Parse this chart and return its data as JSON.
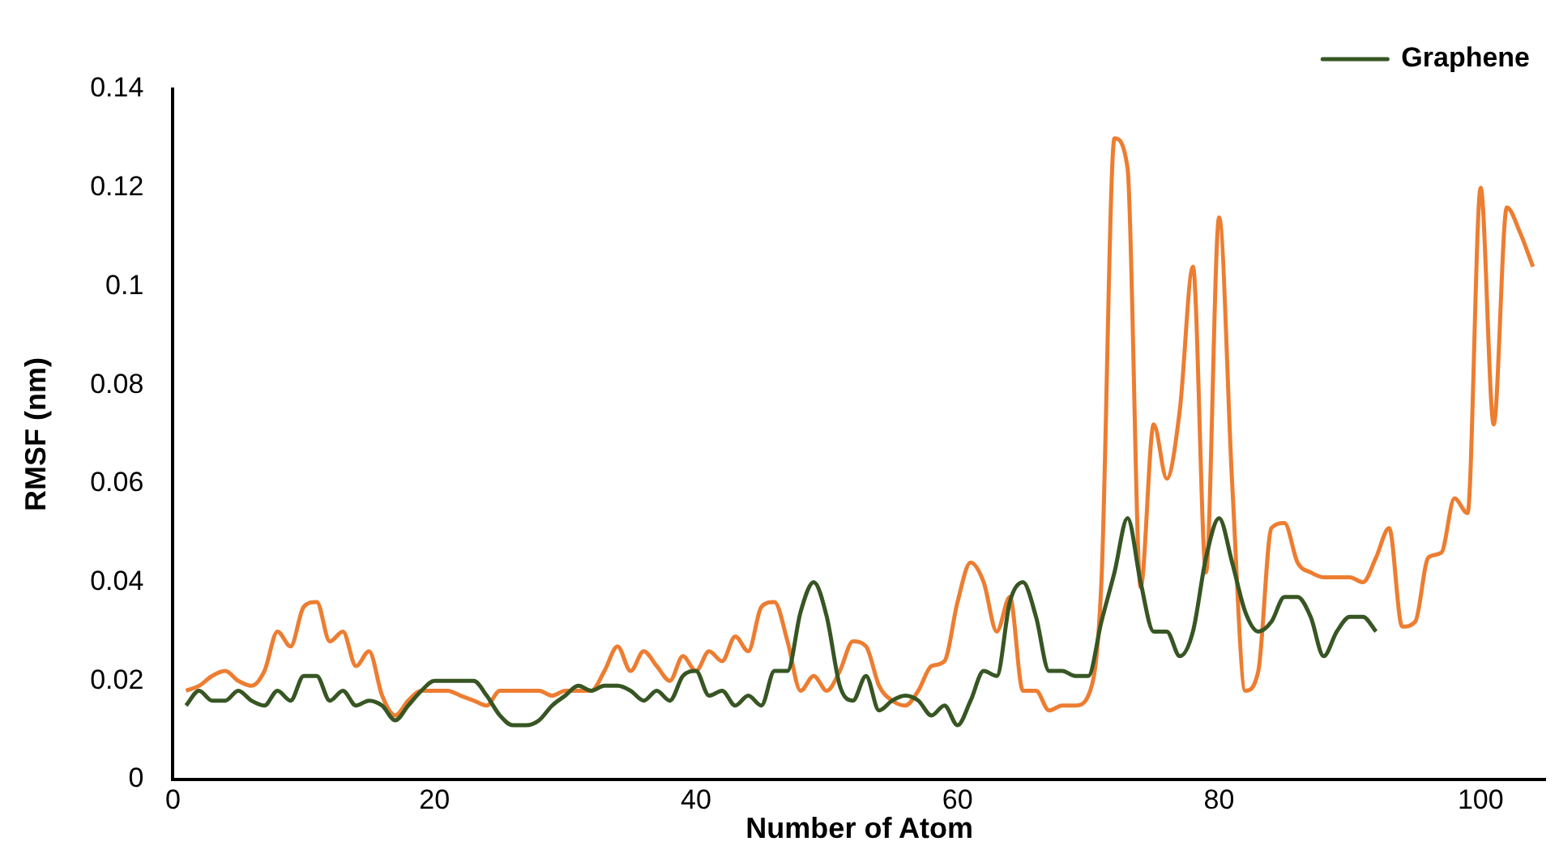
{
  "chart_data": {
    "type": "line",
    "xlabel": "Number of Atom",
    "ylabel": "RMSF (nm)",
    "xlim": [
      0,
      105
    ],
    "xticks": [
      0,
      20,
      40,
      60,
      80,
      100
    ],
    "ylim": [
      0,
      0.14
    ],
    "yticks": [
      0,
      0.02,
      0.04,
      0.06,
      0.08,
      0.1,
      0.12,
      0.14
    ],
    "grid": false,
    "legend": "top right",
    "marker": "none",
    "x": [
      1,
      2,
      3,
      4,
      5,
      6,
      7,
      8,
      9,
      10,
      11,
      12,
      13,
      14,
      15,
      16,
      17,
      18,
      19,
      20,
      21,
      22,
      23,
      24,
      25,
      26,
      27,
      28,
      29,
      30,
      31,
      32,
      33,
      34,
      35,
      36,
      37,
      38,
      39,
      40,
      41,
      42,
      43,
      44,
      45,
      46,
      47,
      48,
      49,
      50,
      51,
      52,
      53,
      54,
      55,
      56,
      57,
      58,
      59,
      60,
      61,
      62,
      63,
      64,
      65,
      66,
      67,
      68,
      69,
      70,
      71,
      72,
      73,
      74,
      75,
      76,
      77,
      78,
      79,
      80,
      81,
      82,
      83,
      84,
      85,
      86,
      87,
      88,
      89,
      90,
      91,
      92,
      93,
      94,
      95,
      96,
      97,
      98,
      99,
      100,
      101,
      102,
      103,
      104
    ],
    "series": [
      {
        "name": "Graphene",
        "color": "#375623",
        "values": [
          0.015,
          0.018,
          0.016,
          0.016,
          0.018,
          0.016,
          0.015,
          0.018,
          0.016,
          0.021,
          0.021,
          0.016,
          0.018,
          0.015,
          0.016,
          0.015,
          0.012,
          0.015,
          0.018,
          0.02,
          0.02,
          0.02,
          0.02,
          0.017,
          0.013,
          0.011,
          0.011,
          0.012,
          0.015,
          0.017,
          0.019,
          0.018,
          0.019,
          0.019,
          0.018,
          0.016,
          0.018,
          0.016,
          0.021,
          0.022,
          0.017,
          0.018,
          0.015,
          0.017,
          0.015,
          0.022,
          0.022,
          0.034,
          0.04,
          0.033,
          0.019,
          0.016,
          0.021,
          0.014,
          0.016,
          0.017,
          0.016,
          0.013,
          0.015,
          0.011,
          0.016,
          0.022,
          0.021,
          0.036,
          0.04,
          0.033,
          0.022,
          0.022,
          0.021,
          0.021,
          0.032,
          0.042,
          0.053,
          0.04,
          0.03,
          0.03,
          0.025,
          0.03,
          0.045,
          0.053,
          0.044,
          0.034,
          0.03,
          0.032,
          0.037,
          0.037,
          0.033,
          0.025,
          0.03,
          0.033,
          0.033,
          0.03,
          null,
          null,
          null,
          null,
          null,
          null,
          null,
          null,
          null,
          null,
          null,
          null
        ]
      },
      {
        "color": "#ed7d31",
        "values": [
          0.018,
          0.019,
          0.021,
          0.022,
          0.02,
          0.019,
          0.022,
          0.03,
          0.027,
          0.035,
          0.036,
          0.028,
          0.03,
          0.023,
          0.026,
          0.017,
          0.013,
          0.016,
          0.018,
          0.018,
          0.018,
          0.017,
          0.016,
          0.015,
          0.018,
          0.018,
          0.018,
          0.018,
          0.017,
          0.018,
          0.018,
          0.018,
          0.022,
          0.027,
          0.022,
          0.026,
          0.023,
          0.02,
          0.025,
          0.022,
          0.026,
          0.024,
          0.029,
          0.026,
          0.035,
          0.036,
          0.028,
          0.018,
          0.021,
          0.018,
          0.022,
          0.028,
          0.027,
          0.019,
          0.016,
          0.015,
          0.018,
          0.023,
          0.024,
          0.036,
          0.044,
          0.04,
          0.03,
          0.037,
          0.018,
          0.018,
          0.014,
          0.015,
          0.015,
          0.017,
          0.04,
          0.13,
          0.124,
          0.039,
          0.072,
          0.061,
          0.075,
          0.104,
          0.042,
          0.114,
          0.06,
          0.018,
          0.022,
          0.051,
          0.052,
          0.044,
          0.042,
          0.041,
          0.041,
          0.041,
          0.04,
          0.045,
          0.051,
          0.031,
          0.032,
          0.045,
          0.046,
          0.057,
          0.054,
          0.12,
          0.072,
          0.116,
          0.111,
          0.104
        ]
      }
    ]
  }
}
